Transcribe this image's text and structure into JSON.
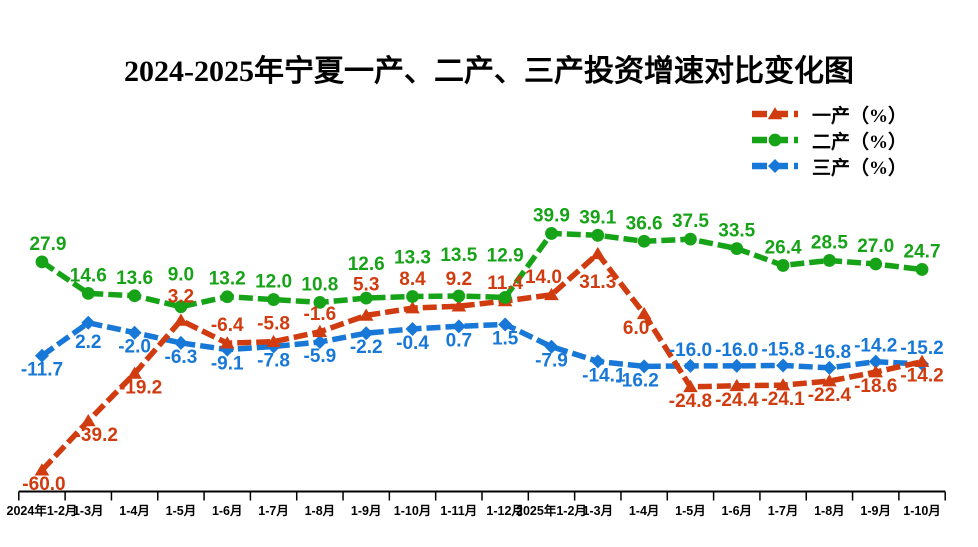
{
  "chart_data": {
    "type": "line",
    "title": "2024-2025年宁夏一产、二产、三产投资增速对比变化图",
    "categories": [
      "2024年1-2月",
      "1-3月",
      "1-4月",
      "1-5月",
      "1-6月",
      "1-7月",
      "1-8月",
      "1-9月",
      "1-10月",
      "1-11月",
      "1-12月",
      "2025年1-2月",
      "1-3月",
      "1-4月",
      "1-5月",
      "1-6月",
      "1-7月",
      "1-8月",
      "1-9月",
      "1-10月"
    ],
    "series": [
      {
        "name": "一产（%）",
        "color": "#d03c0f",
        "marker": "triangle",
        "values": [
          -60.0,
          -39.2,
          -19.2,
          3.2,
          -6.4,
          -5.8,
          -1.6,
          5.3,
          8.4,
          9.2,
          11.4,
          14.0,
          31.3,
          6.0,
          -24.8,
          -24.4,
          -24.1,
          -22.4,
          -18.6,
          -14.2
        ],
        "label_side": [
          "below",
          "below",
          "below",
          "above",
          "above",
          "above",
          "above",
          "above",
          "above",
          "above",
          "above",
          "above",
          "below",
          "below",
          "below",
          "below",
          "below",
          "below",
          "below",
          "below"
        ]
      },
      {
        "name": "二产（%）",
        "color": "#17a317",
        "marker": "circle",
        "values": [
          27.9,
          14.6,
          13.6,
          9.0,
          13.2,
          12.0,
          10.8,
          12.6,
          13.3,
          13.5,
          12.9,
          39.9,
          39.1,
          36.6,
          37.5,
          33.5,
          26.4,
          28.5,
          27.0,
          24.7
        ],
        "label_side": [
          "above",
          "above",
          "above",
          "above",
          "above",
          "above",
          "above",
          "above",
          "above",
          "above",
          "above",
          "above",
          "above",
          "above",
          "above",
          "above",
          "above",
          "above",
          "above",
          "above"
        ]
      },
      {
        "name": "三产（%）",
        "color": "#1878d8",
        "marker": "diamond",
        "values": [
          -11.7,
          2.2,
          -2.0,
          -6.3,
          -9.1,
          -7.8,
          -5.9,
          -2.2,
          -0.4,
          0.7,
          1.5,
          -7.9,
          -14.1,
          -16.2,
          -16.0,
          -16.0,
          -15.8,
          -16.8,
          -14.2,
          -15.2
        ],
        "label_side": [
          "below",
          "below",
          "below",
          "below",
          "below",
          "below",
          "below",
          "below",
          "below",
          "below",
          "below",
          "below",
          "below",
          "below",
          "above",
          "above",
          "above",
          "above",
          "above",
          "above"
        ]
      }
    ],
    "xlabel": "",
    "ylabel": "",
    "ylim": [
      -71,
      46
    ],
    "grid": false,
    "y_axis_visible": false,
    "legend_position": "top-right",
    "line_style": "thick-dashed",
    "data_labels": "one-decimal, colored same as series"
  }
}
